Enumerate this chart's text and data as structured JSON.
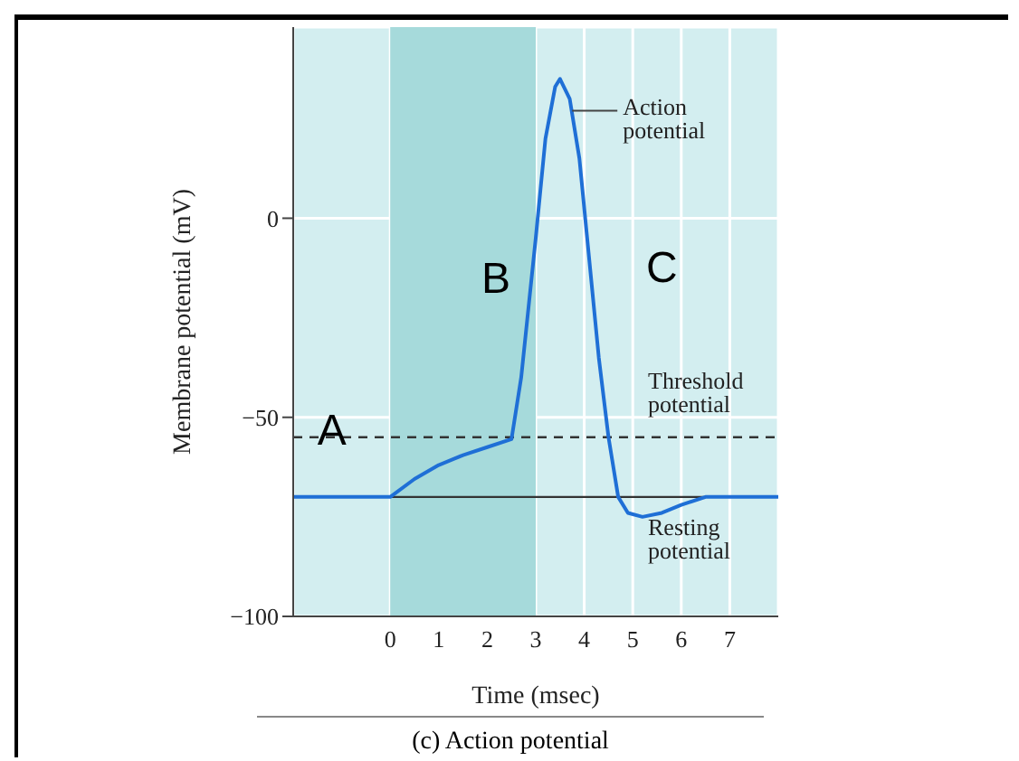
{
  "chart_data": {
    "type": "line",
    "xlabel": "Time (msec)",
    "ylabel": "Membrane potential (mV)",
    "x": [
      -2,
      0,
      0.5,
      1,
      1.5,
      2,
      2.5,
      2.7,
      3,
      3.2,
      3.4,
      3.5,
      3.7,
      3.9,
      4.1,
      4.3,
      4.5,
      4.7,
      4.9,
      5.2,
      5.6,
      6,
      6.5,
      7,
      8
    ],
    "series": [
      {
        "color": "#1f6fd6",
        "values": [
          -70,
          -70,
          -65.5,
          -62,
          -59.5,
          -57.5,
          -55.5,
          -40,
          -5,
          20,
          33,
          35,
          30,
          15,
          -10,
          -35,
          -55,
          -70,
          -74,
          -75,
          -74,
          -72,
          -70,
          -70,
          -70
        ]
      }
    ],
    "xlim": [
      -2,
      8
    ],
    "xticks": [
      0,
      1,
      2,
      3,
      4,
      5,
      6,
      7
    ],
    "ylim": [
      -100,
      48
    ],
    "yticks": [
      -100,
      -50,
      0
    ],
    "grid": true,
    "marker": "none",
    "line_style": "solid",
    "bands": [
      {
        "axis": "x",
        "from": 0,
        "to": 3,
        "color": "#a6dadb"
      }
    ],
    "ref_lines": [
      {
        "axis": "y",
        "value": -55,
        "label": "Threshold potential",
        "color": "#333333",
        "line_style": "dashed"
      },
      {
        "axis": "y",
        "value": -70,
        "label": "Resting potential",
        "color": "#333333",
        "line_style": "solid"
      }
    ],
    "annotations": [
      {
        "text": "Action potential",
        "x": 3.75,
        "y": 27
      },
      {
        "text": "A",
        "x": -1.2,
        "y": -54
      },
      "B",
      "C",
      "(c) Action potential"
    ]
  }
}
